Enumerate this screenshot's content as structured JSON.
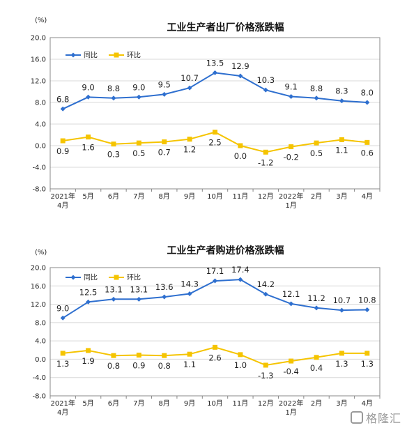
{
  "colors": {
    "yoy": "#2e6fcf",
    "mom": "#f5c400"
  },
  "chart_data": [
    {
      "type": "line",
      "title": "工业生产者出厂价格涨跌幅",
      "unit": "(%)",
      "ylim": [
        -8.0,
        20.0
      ],
      "yticks": [
        "20.0",
        "16.0",
        "12.0",
        "8.0",
        "4.0",
        "0.0",
        "-4.0",
        "-8.0"
      ],
      "categories": [
        [
          "2021年",
          "4月"
        ],
        [
          "5月"
        ],
        [
          "6月"
        ],
        [
          "7月"
        ],
        [
          "8月"
        ],
        [
          "9月"
        ],
        [
          "10月"
        ],
        [
          "11月"
        ],
        [
          "12月"
        ],
        [
          "2022年",
          "1月"
        ],
        [
          "2月"
        ],
        [
          "3月"
        ],
        [
          "4月"
        ]
      ],
      "series": [
        {
          "name": "同比",
          "values": [
            6.8,
            9.0,
            8.8,
            9.0,
            9.5,
            10.7,
            13.5,
            12.9,
            10.3,
            9.1,
            8.8,
            8.3,
            8.0
          ],
          "labels": [
            "6.8",
            "9.0",
            "8.8",
            "9.0",
            "9.5",
            "10.7",
            "13.5",
            "12.9",
            "10.3",
            "9.1",
            "8.8",
            "8.3",
            "8.0"
          ]
        },
        {
          "name": "环比",
          "values": [
            0.9,
            1.6,
            0.3,
            0.5,
            0.7,
            1.2,
            2.5,
            0.0,
            -1.2,
            -0.2,
            0.5,
            1.1,
            0.6
          ],
          "labels": [
            "0.9",
            "1.6",
            "0.3",
            "0.5",
            "0.7",
            "1.2",
            "2.5",
            "0.0",
            "-1.2",
            "-0.2",
            "0.5",
            "1.1",
            "0.6"
          ]
        }
      ],
      "legend": "top-left",
      "grid": true
    },
    {
      "type": "line",
      "title": "工业生产者购进价格涨跌幅",
      "unit": "(%)",
      "ylim": [
        -8.0,
        20.0
      ],
      "yticks": [
        "20.0",
        "16.0",
        "12.0",
        "8.0",
        "4.0",
        "0.0",
        "-4.0",
        "-8.0"
      ],
      "categories": [
        [
          "2021年",
          "4月"
        ],
        [
          "5月"
        ],
        [
          "6月"
        ],
        [
          "7月"
        ],
        [
          "8月"
        ],
        [
          "9月"
        ],
        [
          "10月"
        ],
        [
          "11月"
        ],
        [
          "12月"
        ],
        [
          "2022年",
          "1月"
        ],
        [
          "2月"
        ],
        [
          "3月"
        ],
        [
          "4月"
        ]
      ],
      "series": [
        {
          "name": "同比",
          "values": [
            9.0,
            12.5,
            13.1,
            13.1,
            13.6,
            14.3,
            17.1,
            17.4,
            14.2,
            12.1,
            11.2,
            10.7,
            10.8
          ],
          "labels": [
            "9.0",
            "12.5",
            "13.1",
            "13.1",
            "13.6",
            "14.3",
            "17.1",
            "17.4",
            "14.2",
            "12.1",
            "11.2",
            "10.7",
            "10.8"
          ]
        },
        {
          "name": "环比",
          "values": [
            1.3,
            1.9,
            0.8,
            0.9,
            0.8,
            1.1,
            2.6,
            1.0,
            -1.3,
            -0.4,
            0.4,
            1.3,
            1.3
          ],
          "labels": [
            "1.3",
            "1.9",
            "0.8",
            "0.9",
            "0.8",
            "1.1",
            "2.6",
            "1.0",
            "-1.3",
            "-0.4",
            "0.4",
            "1.3",
            "1.3"
          ]
        }
      ],
      "legend": "top-left",
      "grid": true
    }
  ],
  "watermark": {
    "text": "格隆汇",
    "icon": "gelonghui-logo-icon"
  }
}
